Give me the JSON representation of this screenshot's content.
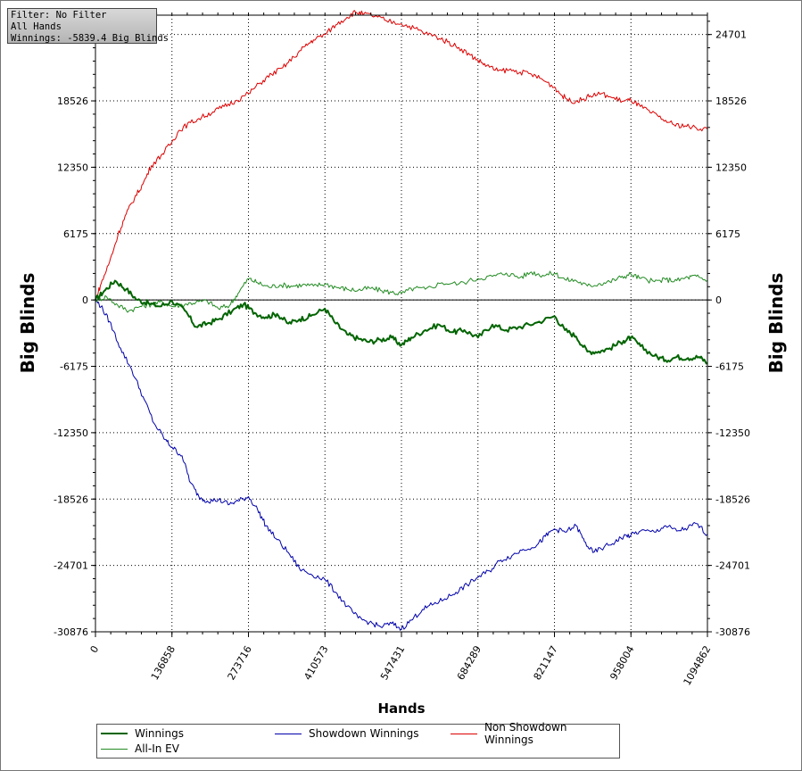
{
  "info": {
    "filter": "Filter: No Filter",
    "hands": "All Hands",
    "winnings": "Winnings: -5839.4 Big Blinds"
  },
  "chart_data": {
    "type": "line",
    "xlabel": "Hands",
    "ylabel_left": "Big Blinds",
    "ylabel_right": "Big Blinds",
    "xlim": [
      0,
      1094862
    ],
    "ylim": [
      -30876,
      26500
    ],
    "x_ticks": [
      "0",
      "136858",
      "273716",
      "410573",
      "547431",
      "684289",
      "821147",
      "958004",
      "1094862"
    ],
    "y_ticks": [
      "24701",
      "18526",
      "12350",
      "6175",
      "0",
      "-6175",
      "-12350",
      "-18526",
      "-24701",
      "-30876"
    ],
    "grid": true,
    "legend_position": "bottom",
    "series": [
      {
        "name": "Winnings",
        "color": "#006400",
        "width": 2,
        "points": [
          [
            0,
            0
          ],
          [
            15000,
            800
          ],
          [
            35000,
            1800
          ],
          [
            55000,
            1000
          ],
          [
            75000,
            0
          ],
          [
            95000,
            -300
          ],
          [
            115000,
            -600
          ],
          [
            136858,
            -100
          ],
          [
            160000,
            -1000
          ],
          [
            180000,
            -2500
          ],
          [
            200000,
            -2200
          ],
          [
            220000,
            -1800
          ],
          [
            245000,
            -1000
          ],
          [
            265000,
            -400
          ],
          [
            285000,
            -1200
          ],
          [
            305000,
            -1600
          ],
          [
            325000,
            -1300
          ],
          [
            345000,
            -2200
          ],
          [
            365000,
            -1800
          ],
          [
            385000,
            -1500
          ],
          [
            410573,
            -800
          ],
          [
            430000,
            -2200
          ],
          [
            450000,
            -3200
          ],
          [
            470000,
            -3600
          ],
          [
            490000,
            -3900
          ],
          [
            510000,
            -3700
          ],
          [
            530000,
            -3500
          ],
          [
            547431,
            -4200
          ],
          [
            565000,
            -3500
          ],
          [
            590000,
            -2800
          ],
          [
            615000,
            -2300
          ],
          [
            640000,
            -3000
          ],
          [
            660000,
            -2800
          ],
          [
            684289,
            -3500
          ],
          [
            710000,
            -2300
          ],
          [
            735000,
            -2800
          ],
          [
            760000,
            -2500
          ],
          [
            790000,
            -2100
          ],
          [
            821147,
            -1500
          ],
          [
            840000,
            -2800
          ],
          [
            860000,
            -3400
          ],
          [
            880000,
            -4800
          ],
          [
            900000,
            -4800
          ],
          [
            920000,
            -4500
          ],
          [
            945000,
            -3800
          ],
          [
            958004,
            -3500
          ],
          [
            975000,
            -4300
          ],
          [
            1000000,
            -5200
          ],
          [
            1020000,
            -5600
          ],
          [
            1040000,
            -5300
          ],
          [
            1060000,
            -5400
          ],
          [
            1080000,
            -5300
          ],
          [
            1094862,
            -5839
          ]
        ]
      },
      {
        "name": "All-In EV",
        "color": "#228B22",
        "width": 1,
        "points": [
          [
            0,
            0
          ],
          [
            20000,
            300
          ],
          [
            40000,
            -500
          ],
          [
            60000,
            -1000
          ],
          [
            80000,
            -600
          ],
          [
            100000,
            -400
          ],
          [
            120000,
            -200
          ],
          [
            136858,
            -600
          ],
          [
            160000,
            -400
          ],
          [
            180000,
            -200
          ],
          [
            200000,
            -100
          ],
          [
            220000,
            -800
          ],
          [
            240000,
            -500
          ],
          [
            255000,
            600
          ],
          [
            273716,
            2000
          ],
          [
            290000,
            1600
          ],
          [
            310000,
            1200
          ],
          [
            330000,
            1400
          ],
          [
            350000,
            1300
          ],
          [
            370000,
            1400
          ],
          [
            390000,
            1300
          ],
          [
            410573,
            1500
          ],
          [
            430000,
            1200
          ],
          [
            450000,
            1000
          ],
          [
            470000,
            900
          ],
          [
            490000,
            1100
          ],
          [
            510000,
            900
          ],
          [
            530000,
            700
          ],
          [
            547431,
            600
          ],
          [
            570000,
            1100
          ],
          [
            590000,
            1000
          ],
          [
            620000,
            1600
          ],
          [
            650000,
            1500
          ],
          [
            684289,
            2000
          ],
          [
            710000,
            2200
          ],
          [
            735000,
            2500
          ],
          [
            760000,
            2100
          ],
          [
            780000,
            2600
          ],
          [
            800000,
            2300
          ],
          [
            821147,
            2500
          ],
          [
            840000,
            1900
          ],
          [
            860000,
            1800
          ],
          [
            880000,
            1300
          ],
          [
            900000,
            1500
          ],
          [
            920000,
            1700
          ],
          [
            940000,
            2100
          ],
          [
            958004,
            2400
          ],
          [
            975000,
            2000
          ],
          [
            1000000,
            1700
          ],
          [
            1020000,
            1900
          ],
          [
            1040000,
            1800
          ],
          [
            1060000,
            2100
          ],
          [
            1075000,
            2200
          ],
          [
            1094862,
            1800
          ]
        ]
      },
      {
        "name": "Showdown Winnings",
        "color": "#0000aa",
        "width": 1,
        "points": [
          [
            0,
            0
          ],
          [
            10000,
            -600
          ],
          [
            25000,
            -2000
          ],
          [
            45000,
            -4500
          ],
          [
            65000,
            -6500
          ],
          [
            85000,
            -9000
          ],
          [
            105000,
            -11500
          ],
          [
            125000,
            -13000
          ],
          [
            136858,
            -13700
          ],
          [
            155000,
            -14500
          ],
          [
            170000,
            -17000
          ],
          [
            185000,
            -18300
          ],
          [
            200000,
            -18700
          ],
          [
            220000,
            -18600
          ],
          [
            240000,
            -19000
          ],
          [
            255000,
            -18700
          ],
          [
            273716,
            -18300
          ],
          [
            290000,
            -19500
          ],
          [
            305000,
            -21000
          ],
          [
            325000,
            -22300
          ],
          [
            345000,
            -23500
          ],
          [
            365000,
            -25000
          ],
          [
            385000,
            -25500
          ],
          [
            410573,
            -26000
          ],
          [
            430000,
            -27200
          ],
          [
            450000,
            -28500
          ],
          [
            470000,
            -29600
          ],
          [
            490000,
            -30000
          ],
          [
            510000,
            -30400
          ],
          [
            530000,
            -30100
          ],
          [
            547431,
            -30600
          ],
          [
            565000,
            -29800
          ],
          [
            585000,
            -28800
          ],
          [
            605000,
            -28300
          ],
          [
            625000,
            -27800
          ],
          [
            645000,
            -27200
          ],
          [
            665000,
            -26500
          ],
          [
            684289,
            -25800
          ],
          [
            705000,
            -25200
          ],
          [
            725000,
            -24200
          ],
          [
            745000,
            -23800
          ],
          [
            765000,
            -23200
          ],
          [
            790000,
            -22800
          ],
          [
            805000,
            -22000
          ],
          [
            821147,
            -21300
          ],
          [
            840000,
            -21600
          ],
          [
            860000,
            -21000
          ],
          [
            875000,
            -22500
          ],
          [
            890000,
            -23500
          ],
          [
            910000,
            -23000
          ],
          [
            930000,
            -22500
          ],
          [
            945000,
            -22000
          ],
          [
            958004,
            -21900
          ],
          [
            975000,
            -21500
          ],
          [
            1000000,
            -21600
          ],
          [
            1020000,
            -21000
          ],
          [
            1040000,
            -21500
          ],
          [
            1060000,
            -21200
          ],
          [
            1075000,
            -20800
          ],
          [
            1094862,
            -21800
          ]
        ]
      },
      {
        "name": "Non Showdown Winnings",
        "color": "#dd0000",
        "width": 1,
        "points": [
          [
            0,
            0
          ],
          [
            10000,
            1500
          ],
          [
            25000,
            3500
          ],
          [
            40000,
            6000
          ],
          [
            55000,
            8000
          ],
          [
            70000,
            9500
          ],
          [
            85000,
            10800
          ],
          [
            100000,
            12500
          ],
          [
            120000,
            13600
          ],
          [
            136858,
            14700
          ],
          [
            150000,
            15800
          ],
          [
            170000,
            16500
          ],
          [
            190000,
            17000
          ],
          [
            210000,
            17500
          ],
          [
            230000,
            18000
          ],
          [
            250000,
            18500
          ],
          [
            273716,
            19200
          ],
          [
            295000,
            20200
          ],
          [
            315000,
            21000
          ],
          [
            335000,
            21600
          ],
          [
            355000,
            22600
          ],
          [
            375000,
            23600
          ],
          [
            390000,
            24200
          ],
          [
            410573,
            24700
          ],
          [
            430000,
            25600
          ],
          [
            450000,
            26300
          ],
          [
            465000,
            26800
          ],
          [
            480000,
            26600
          ],
          [
            500000,
            26400
          ],
          [
            520000,
            26000
          ],
          [
            547431,
            25700
          ],
          [
            570000,
            25300
          ],
          [
            590000,
            24800
          ],
          [
            610000,
            24500
          ],
          [
            630000,
            24000
          ],
          [
            650000,
            23500
          ],
          [
            670000,
            22800
          ],
          [
            684289,
            22300
          ],
          [
            700000,
            21800
          ],
          [
            720000,
            21300
          ],
          [
            740000,
            21400
          ],
          [
            760000,
            21200
          ],
          [
            780000,
            21000
          ],
          [
            800000,
            20500
          ],
          [
            821147,
            19800
          ],
          [
            835000,
            19000
          ],
          [
            850000,
            18500
          ],
          [
            870000,
            18600
          ],
          [
            885000,
            19000
          ],
          [
            905000,
            19200
          ],
          [
            925000,
            18800
          ],
          [
            945000,
            18500
          ],
          [
            958004,
            18600
          ],
          [
            975000,
            18000
          ],
          [
            995000,
            17400
          ],
          [
            1015000,
            16800
          ],
          [
            1035000,
            16300
          ],
          [
            1055000,
            16200
          ],
          [
            1075000,
            16000
          ],
          [
            1094862,
            15900
          ]
        ]
      }
    ]
  }
}
